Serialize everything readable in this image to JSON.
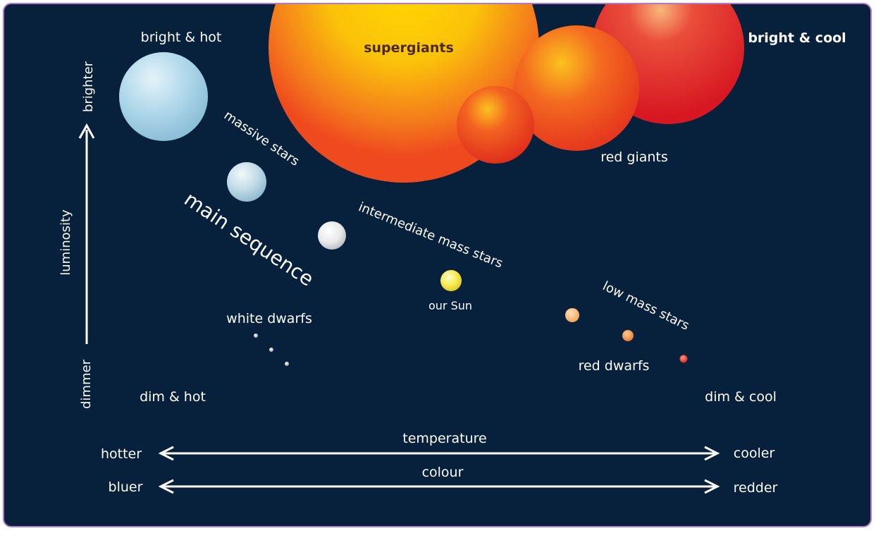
{
  "corners": {
    "top_left": "bright & hot",
    "top_right": "bright & cool",
    "bottom_left": "dim & hot",
    "bottom_right": "dim & cool"
  },
  "y_axis": {
    "label": "luminosity",
    "top": "brighter",
    "bottom": "dimmer"
  },
  "groups": {
    "supergiants": "supergiants",
    "red_giants": "red giants",
    "massive_stars": "massive stars",
    "main_sequence": "main sequence",
    "intermediate_mass_stars": "intermediate mass stars",
    "our_sun": "our Sun",
    "low_mass_stars": "low mass stars",
    "white_dwarfs": "white dwarfs",
    "red_dwarfs": "red dwarfs"
  },
  "x_axes": {
    "temperature": {
      "label": "temperature",
      "left": "hotter",
      "right": "cooler"
    },
    "colour": {
      "label": "colour",
      "left": "bluer",
      "right": "redder"
    }
  },
  "colors": {
    "background": "#07203b",
    "border": "#b07ac8",
    "text": "#ffffff",
    "supergiant": "#f7a21b",
    "red_giant": "#e5331c",
    "blue_star": "#a8d4e8",
    "sun": "#f5e23a"
  }
}
